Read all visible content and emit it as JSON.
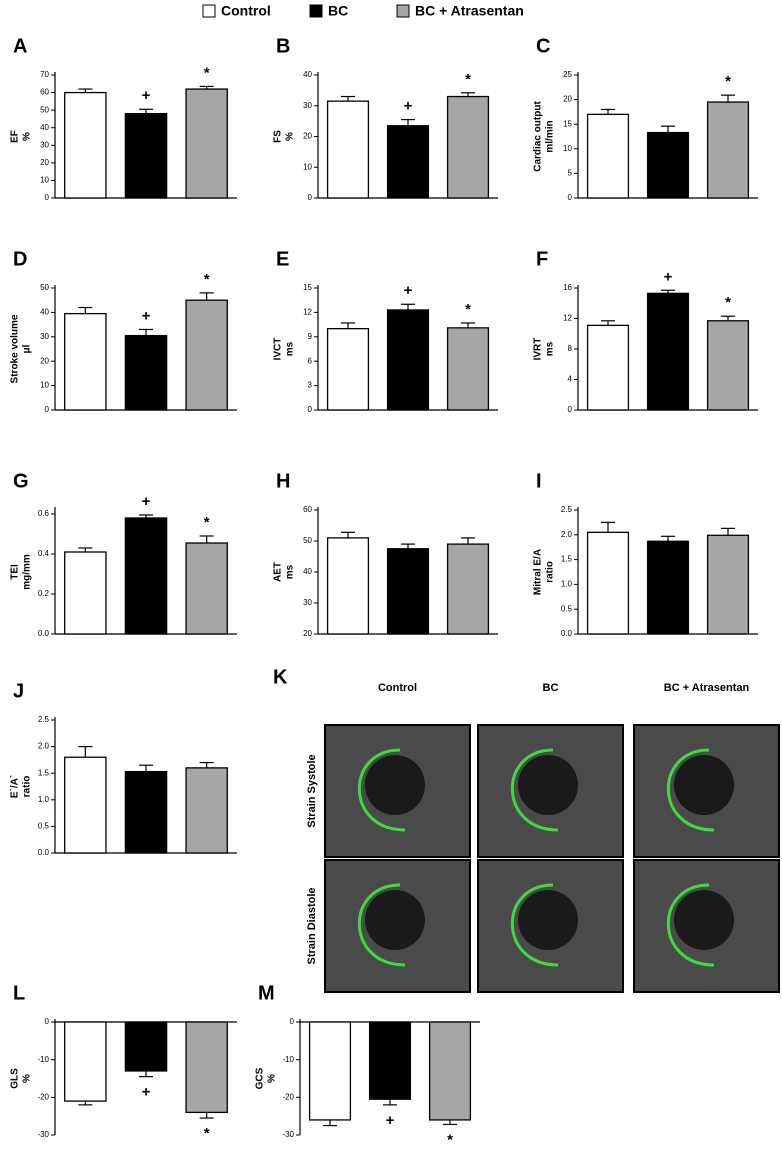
{
  "legend": [
    {
      "name": "Control",
      "color": "#ffffff"
    },
    {
      "name": "BC",
      "color": "#000000"
    },
    {
      "name": "BC + Atrasentan",
      "color": "#a6a6a6"
    }
  ],
  "chart_data": [
    {
      "type": "bar",
      "panel": "A",
      "ylabel": [
        "EF",
        "%"
      ],
      "values": [
        60,
        48,
        62
      ],
      "errors": [
        2,
        2.5,
        1.5
      ],
      "annotations": [
        null,
        "+",
        "*"
      ],
      "ylim": [
        0,
        70
      ],
      "yticks": [
        0,
        10,
        20,
        30,
        40,
        50,
        60,
        70
      ]
    },
    {
      "type": "bar",
      "panel": "B",
      "ylabel": [
        "FS",
        "%"
      ],
      "values": [
        31.5,
        23.5,
        33
      ],
      "errors": [
        1.5,
        2,
        1.2
      ],
      "annotations": [
        null,
        "+",
        "*"
      ],
      "ylim": [
        0,
        40
      ],
      "yticks": [
        0,
        10,
        20,
        30,
        40
      ]
    },
    {
      "type": "bar",
      "panel": "C",
      "ylabel": [
        "Cardiac output",
        "ml/min"
      ],
      "values": [
        17,
        13.3,
        19.5
      ],
      "errors": [
        1,
        1.3,
        1.4
      ],
      "annotations": [
        null,
        null,
        "*"
      ],
      "ylim": [
        0,
        25
      ],
      "yticks": [
        0,
        5,
        10,
        15,
        20,
        25
      ]
    },
    {
      "type": "bar",
      "panel": "D",
      "ylabel": [
        "Stroke volume",
        "μl"
      ],
      "values": [
        39.5,
        30.5,
        45
      ],
      "errors": [
        2.5,
        2.5,
        3
      ],
      "annotations": [
        null,
        "+",
        "*"
      ],
      "ylim": [
        0,
        50
      ],
      "yticks": [
        0,
        10,
        20,
        30,
        40,
        50
      ]
    },
    {
      "type": "bar",
      "panel": "E",
      "ylabel": [
        "IVCT",
        "ms"
      ],
      "values": [
        10,
        12.3,
        10.1
      ],
      "errors": [
        0.7,
        0.7,
        0.6
      ],
      "annotations": [
        null,
        "+",
        "*"
      ],
      "ylim": [
        0,
        15
      ],
      "yticks": [
        0,
        3,
        6,
        9,
        12,
        15
      ]
    },
    {
      "type": "bar",
      "panel": "F",
      "ylabel": [
        "IVRT",
        "ms"
      ],
      "values": [
        11.1,
        15.3,
        11.7
      ],
      "errors": [
        0.6,
        0.4,
        0.6
      ],
      "annotations": [
        null,
        "+",
        "*"
      ],
      "ylim": [
        0,
        16
      ],
      "yticks": [
        0,
        4,
        8,
        12,
        16
      ]
    },
    {
      "type": "bar",
      "panel": "G",
      "ylabel": [
        "TEI",
        "mg/mm"
      ],
      "values": [
        0.41,
        0.58,
        0.455
      ],
      "errors": [
        0.02,
        0.015,
        0.035
      ],
      "annotations": [
        null,
        "+",
        "*"
      ],
      "ylim": [
        0,
        0.62
      ],
      "yticks": [
        {
          "value": 0,
          "label": "0.0"
        },
        0.2,
        0.4,
        0.6
      ]
    },
    {
      "type": "bar",
      "panel": "H",
      "ylabel": [
        "AET",
        "ms"
      ],
      "values": [
        51,
        47.5,
        49
      ],
      "errors": [
        1.8,
        1.5,
        2
      ],
      "annotations": [
        null,
        null,
        null
      ],
      "ylim": [
        20,
        60
      ],
      "yticks": [
        20,
        30,
        40,
        50,
        60
      ]
    },
    {
      "type": "bar",
      "panel": "I",
      "ylabel": [
        "Mitral E/A",
        "ratio"
      ],
      "values": [
        2.05,
        1.87,
        1.99
      ],
      "errors": [
        0.2,
        0.1,
        0.14
      ],
      "annotations": [
        null,
        null,
        null
      ],
      "ylim": [
        0,
        2.5
      ],
      "yticks": [
        {
          "value": 0,
          "label": "0.0"
        },
        0.5,
        {
          "value": 1,
          "label": "1.0"
        },
        1.5,
        {
          "value": 2,
          "label": "2.0"
        },
        2.5
      ]
    },
    {
      "type": "bar",
      "panel": "J",
      "ylabel": [
        "E`/A`",
        "ratio"
      ],
      "values": [
        1.8,
        1.53,
        1.6
      ],
      "errors": [
        0.2,
        0.12,
        0.1
      ],
      "annotations": [
        null,
        null,
        null
      ],
      "ylim": [
        0,
        2.5
      ],
      "yticks": [
        {
          "value": 0,
          "label": "0.0"
        },
        0.5,
        {
          "value": 1,
          "label": "1.0"
        },
        1.5,
        {
          "value": 2,
          "label": "2.0"
        },
        2.5
      ]
    },
    {
      "type": "bar",
      "panel": "L",
      "ylabel": [
        "GLS",
        "%"
      ],
      "values": [
        -21,
        -13,
        -24
      ],
      "errors": [
        1,
        1.5,
        1.5
      ],
      "annotations": [
        null,
        "+",
        "*"
      ],
      "ylim": [
        -30,
        0
      ],
      "yticks": [
        0,
        -10,
        -20,
        -30
      ]
    },
    {
      "type": "bar",
      "panel": "M",
      "ylabel": [
        "GCS",
        "%"
      ],
      "values": [
        -26,
        -20.5,
        -26
      ],
      "errors": [
        1.5,
        1.5,
        1.2
      ],
      "annotations": [
        null,
        "+",
        "*"
      ],
      "ylim": [
        -30,
        0
      ],
      "yticks": [
        0,
        -10,
        -20,
        -30
      ]
    }
  ],
  "image_panel": {
    "panel": "K",
    "columns": [
      "Control",
      "BC",
      "BC + Atrasentan"
    ],
    "rows": [
      "Strain Systole",
      "Strain Diastole"
    ]
  }
}
